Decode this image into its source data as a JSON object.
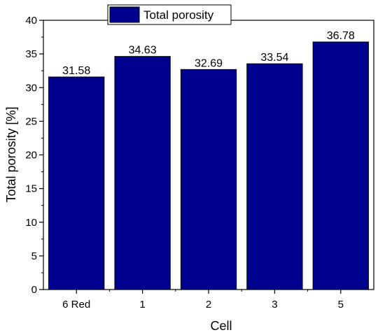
{
  "chart_data": {
    "type": "bar",
    "categories": [
      "6 Red",
      "1",
      "2",
      "3",
      "5"
    ],
    "series": [
      {
        "name": "Total porosity",
        "values": [
          31.58,
          34.63,
          32.69,
          33.54,
          36.78
        ]
      }
    ],
    "value_labels": [
      "31.58",
      "34.63",
      "32.69",
      "33.54",
      "36.78"
    ],
    "xlabel": "Cell",
    "ylabel": "Total porosity [%]",
    "ylim": [
      0,
      40
    ],
    "yticks": [
      "0",
      "5",
      "10",
      "15",
      "20",
      "25",
      "30",
      "35",
      "40"
    ],
    "grid": false,
    "legend_position": "top-center",
    "colors": {
      "bar": "#00008f",
      "bar_edge": "#000000",
      "axis": "#000000"
    }
  }
}
